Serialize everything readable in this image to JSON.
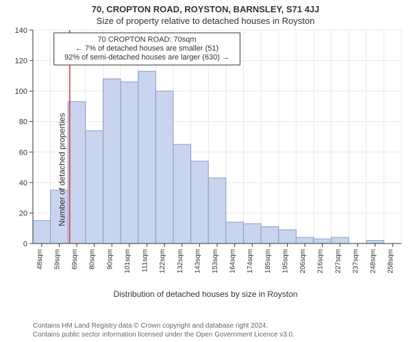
{
  "header": {
    "address": "70, CROPTON ROAD, ROYSTON, BARNSLEY, S71 4JJ",
    "subtitle": "Size of property relative to detached houses in Royston"
  },
  "chart": {
    "type": "histogram",
    "ylabel": "Number of detached properties",
    "xlabel": "Distribution of detached houses by size in Royston",
    "ylim": [
      0,
      140
    ],
    "ytick_step": 20,
    "background_color": "#ffffff",
    "grid_color": "#e8e8f0",
    "bar_fill": "#c9d4ee",
    "bar_stroke": "#8a99c7",
    "bar_stroke_width": 1,
    "reference_line_color": "#d93333",
    "reference_line_x_index": 2.1,
    "categories": [
      "48sqm",
      "59sqm",
      "69sqm",
      "80sqm",
      "90sqm",
      "101sqm",
      "111sqm",
      "122sqm",
      "132sqm",
      "143sqm",
      "153sqm",
      "164sqm",
      "174sqm",
      "185sqm",
      "195sqm",
      "206sqm",
      "216sqm",
      "227sqm",
      "237sqm",
      "248sqm",
      "258sqm"
    ],
    "values": [
      15,
      35,
      93,
      74,
      108,
      106,
      113,
      100,
      65,
      54,
      43,
      14,
      13,
      11,
      9,
      4,
      3,
      4,
      0,
      2,
      0
    ],
    "annotation": {
      "lines": [
        "70 CROPTON ROAD: 70sqm",
        "← 7% of detached houses are smaller (51)",
        "92% of semi-detached houses are larger (630) →"
      ],
      "border_color": "#333333",
      "font_size": 11
    }
  },
  "footer": {
    "line1": "Contains HM Land Registry data © Crown copyright and database right 2024.",
    "line2": "Contains public sector information licensed under the Open Government Licence v3.0."
  }
}
